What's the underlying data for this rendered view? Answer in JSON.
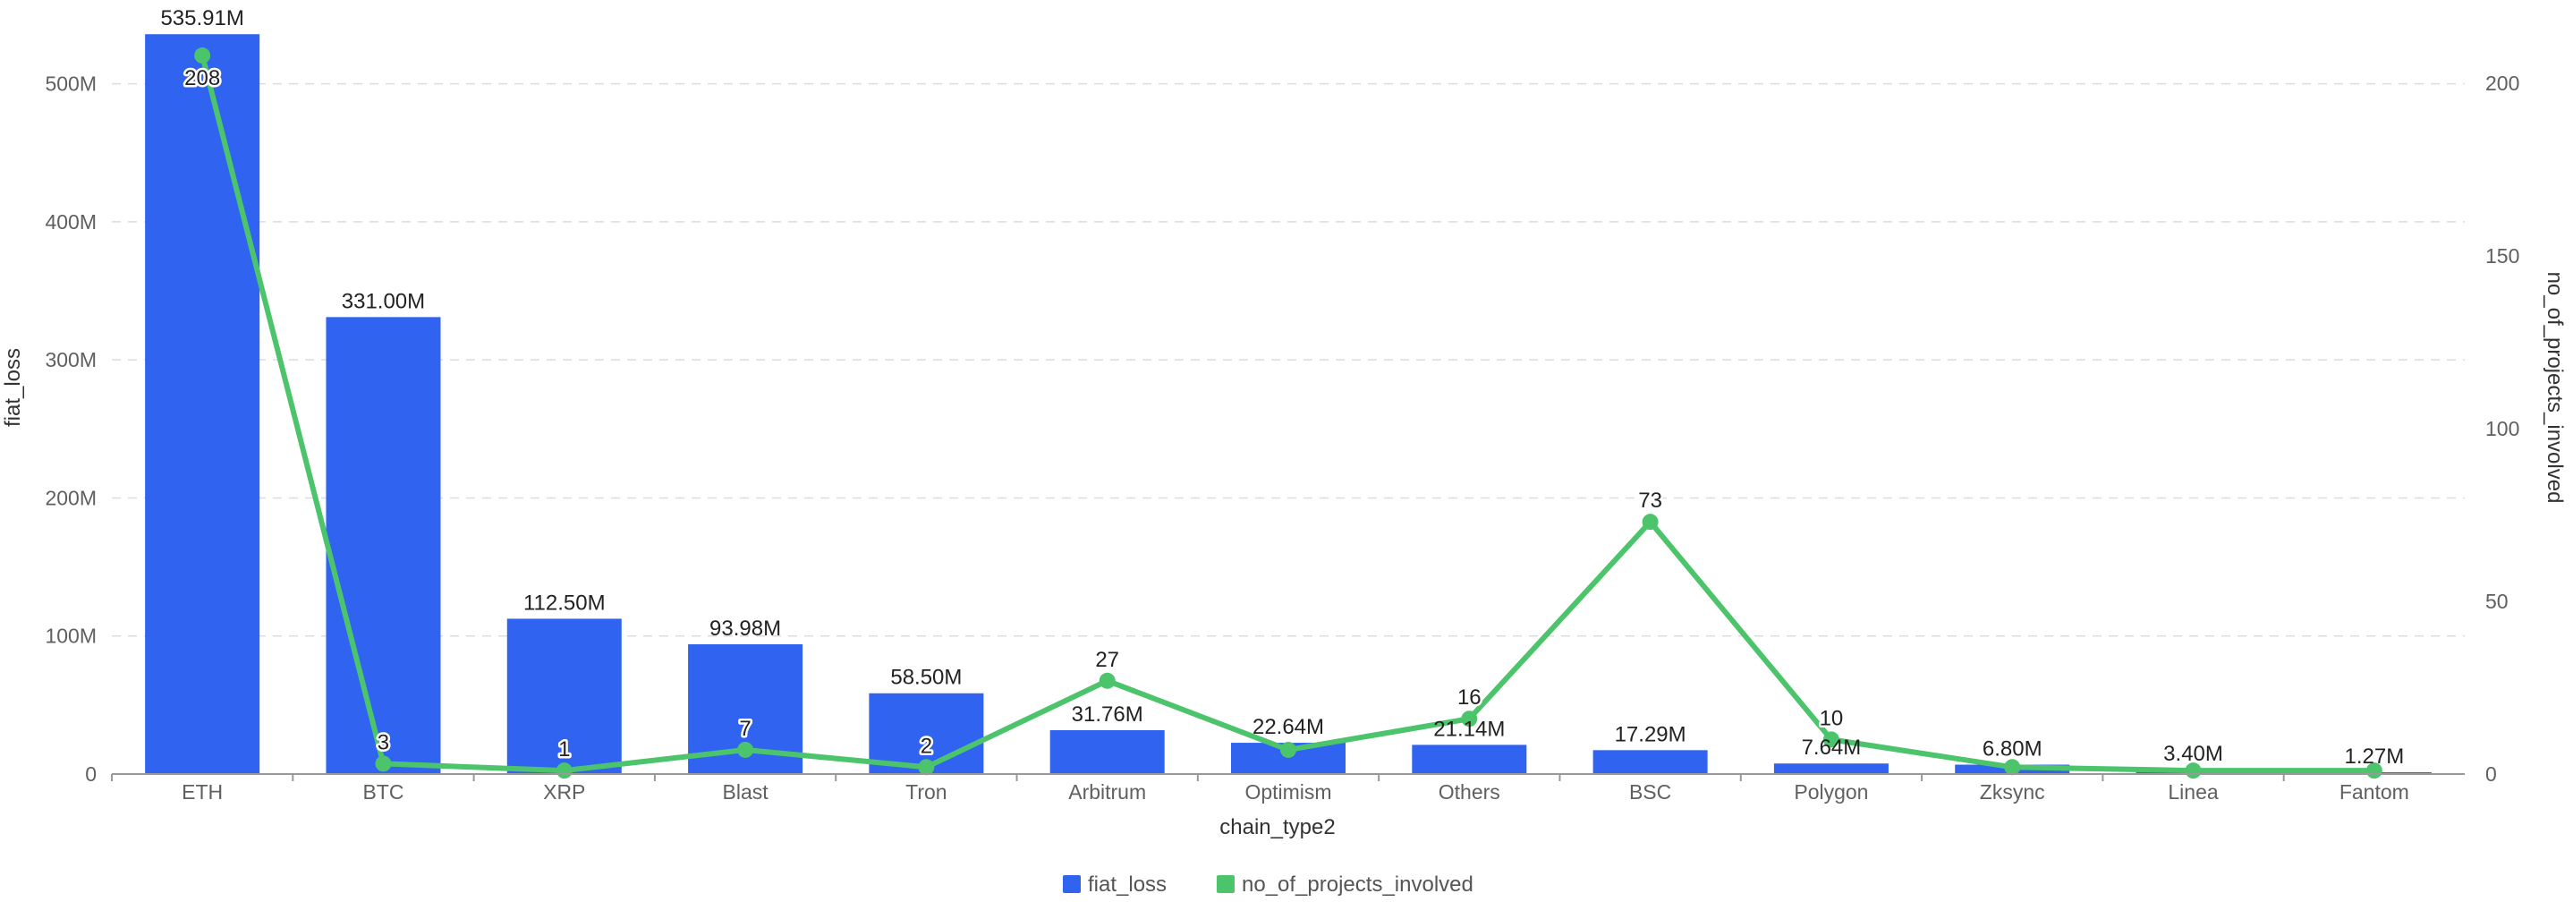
{
  "chart_data": {
    "type": "bar+line",
    "categories": [
      "ETH",
      "BTC",
      "XRP",
      "Blast",
      "Tron",
      "Arbitrum",
      "Optimism",
      "Others",
      "BSC",
      "Polygon",
      "Zksync",
      "Linea",
      "Fantom"
    ],
    "series": [
      {
        "name": "fiat_loss",
        "type": "bar",
        "axis": "left",
        "color": "#2f63f0",
        "values": [
          535.91,
          331.0,
          112.5,
          93.98,
          58.5,
          31.76,
          22.64,
          21.14,
          17.29,
          7.64,
          6.8,
          3.4,
          1.27
        ],
        "labels": [
          "535.91M",
          "331.00M",
          "112.50M",
          "93.98M",
          "58.50M",
          "31.76M",
          "22.64M",
          "21.14M",
          "17.29M",
          "7.64M",
          "6.80M",
          "3.40M",
          "1.27M"
        ]
      },
      {
        "name": "no_of_projects_involved",
        "type": "line",
        "axis": "right",
        "color": "#4cc46b",
        "values": [
          208,
          3,
          1,
          7,
          2,
          27,
          7,
          16,
          73,
          10,
          2,
          1,
          1
        ],
        "labels": [
          "208",
          "3",
          "1",
          "7",
          "2",
          "27",
          "",
          "16",
          "73",
          "10",
          "",
          "",
          ""
        ]
      }
    ],
    "xlabel": "chain_type2",
    "ylabel": "fiat_loss",
    "y2label": "no_of_projects_involved",
    "ylim": [
      0,
      538
    ],
    "y2lim": [
      0,
      215
    ],
    "yticks": [
      {
        "value": 0,
        "label": "0"
      },
      {
        "value": 100,
        "label": "100M"
      },
      {
        "value": 200,
        "label": "200M"
      },
      {
        "value": 300,
        "label": "300M"
      },
      {
        "value": 400,
        "label": "400M"
      },
      {
        "value": 500,
        "label": "500M"
      }
    ],
    "y2ticks": [
      {
        "value": 0,
        "label": "0"
      },
      {
        "value": 50,
        "label": "50"
      },
      {
        "value": 100,
        "label": "100"
      },
      {
        "value": 150,
        "label": "150"
      },
      {
        "value": 200,
        "label": "200"
      }
    ],
    "grid": true,
    "legend": {
      "position": "bottom",
      "items": [
        {
          "name": "fiat_loss",
          "color": "#2f63f0"
        },
        {
          "name": "no_of_projects_involved",
          "color": "#4cc46b"
        }
      ]
    }
  }
}
